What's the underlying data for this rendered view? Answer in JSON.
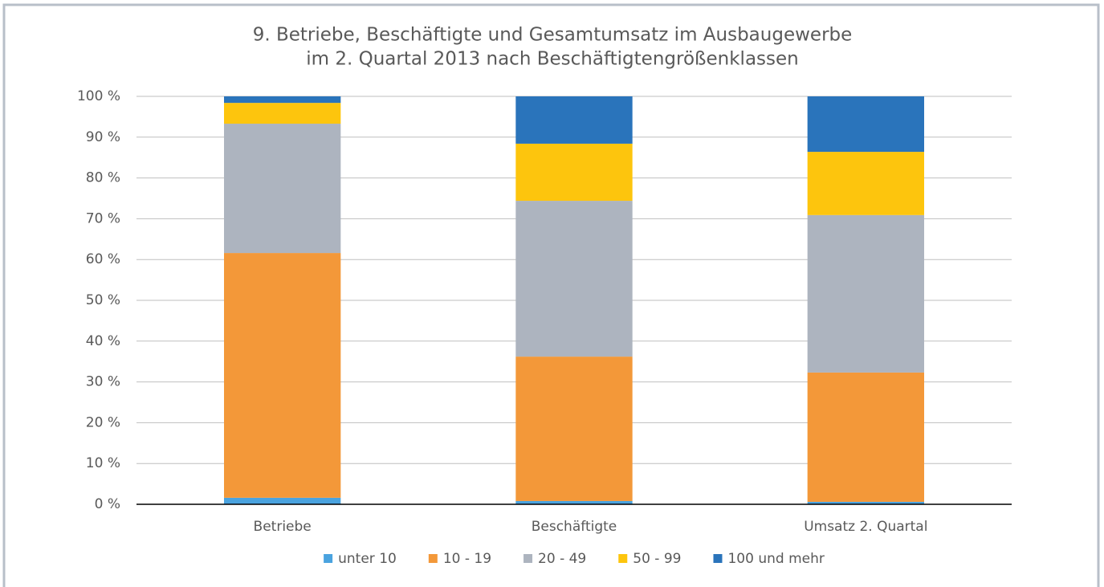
{
  "chart_data": {
    "type": "stacked_bar",
    "title": [
      "9. Betriebe, Beschäftigte und Gesamtumsatz im Ausbaugewerbe",
      "im 2. Quartal 2013 nach Beschäftigtengrößenklassen"
    ],
    "categories": [
      "Betriebe",
      "Beschäftigte",
      "Umsatz 2. Quartal"
    ],
    "series": [
      {
        "name": "unter 10",
        "color": "#4aa3df",
        "values": [
          1.6,
          0.8,
          0.6
        ]
      },
      {
        "name": "10 - 19",
        "color": "#f39839",
        "values": [
          60.0,
          35.4,
          31.7
        ]
      },
      {
        "name": "20 - 49",
        "color": "#adb4bf",
        "values": [
          31.7,
          38.2,
          38.6
        ]
      },
      {
        "name": "50 - 99",
        "color": "#fdc50d",
        "values": [
          5.1,
          14.0,
          15.5
        ]
      },
      {
        "name": "100 und mehr",
        "color": "#2a74bb",
        "values": [
          1.6,
          11.6,
          13.6
        ]
      }
    ],
    "ylim": [
      0,
      100
    ],
    "yticks": [
      {
        "value": 0,
        "label": "0 %"
      },
      {
        "value": 10,
        "label": "10 %"
      },
      {
        "value": 20,
        "label": "20 %"
      },
      {
        "value": 30,
        "label": "30 %"
      },
      {
        "value": 40,
        "label": "40 %"
      },
      {
        "value": 50,
        "label": "50 %"
      },
      {
        "value": 60,
        "label": "60 %"
      },
      {
        "value": 70,
        "label": "70 %"
      },
      {
        "value": 80,
        "label": "80 %"
      },
      {
        "value": 90,
        "label": "90 %"
      },
      {
        "value": 100,
        "label": "100 %"
      }
    ],
    "grid": true,
    "legend": "bottom"
  }
}
